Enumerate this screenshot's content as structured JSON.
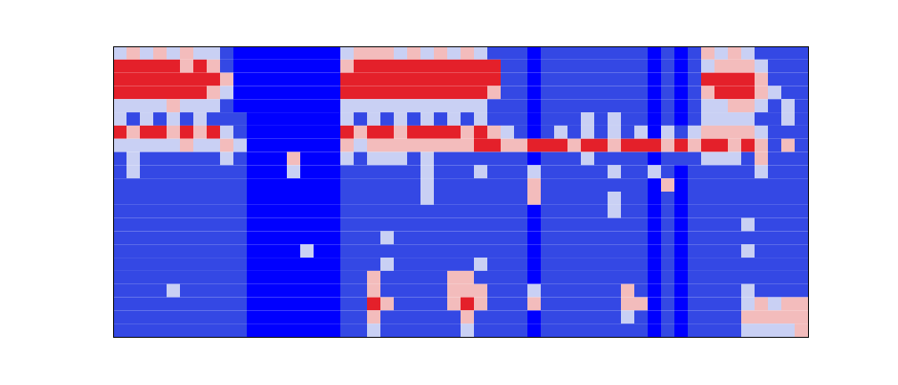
{
  "chart_data": {
    "type": "heatmap",
    "xlim": [
      0,
      52
    ],
    "ylim": [
      0,
      22
    ],
    "zlim": [
      0,
      4
    ],
    "tick_labels": false,
    "cells": [
      [
        2,
        3,
        2,
        3,
        2,
        3,
        2,
        2,
        1,
        0,
        0,
        0,
        0,
        0,
        0,
        0,
        0,
        2,
        3,
        3,
        3,
        2,
        3,
        2,
        3,
        2,
        3,
        2,
        1,
        1,
        1,
        0,
        1,
        1,
        1,
        1,
        1,
        1,
        1,
        1,
        0,
        1,
        0,
        1,
        3,
        2,
        3,
        2,
        1,
        1,
        1,
        1
      ],
      [
        4,
        4,
        4,
        4,
        4,
        3,
        4,
        3,
        1,
        0,
        0,
        0,
        0,
        0,
        0,
        0,
        0,
        3,
        4,
        4,
        4,
        4,
        4,
        4,
        4,
        4,
        4,
        4,
        4,
        1,
        1,
        0,
        1,
        1,
        1,
        1,
        1,
        1,
        1,
        1,
        0,
        1,
        0,
        1,
        2,
        3,
        3,
        3,
        2,
        1,
        1,
        1
      ],
      [
        4,
        4,
        4,
        4,
        4,
        4,
        4,
        4,
        3,
        0,
        0,
        0,
        0,
        0,
        0,
        0,
        0,
        4,
        4,
        4,
        4,
        4,
        4,
        4,
        4,
        4,
        4,
        4,
        4,
        1,
        1,
        0,
        1,
        1,
        1,
        1,
        1,
        1,
        1,
        1,
        0,
        1,
        0,
        1,
        4,
        4,
        4,
        4,
        3,
        1,
        1,
        1
      ],
      [
        4,
        4,
        4,
        4,
        4,
        4,
        4,
        3,
        2,
        0,
        0,
        0,
        0,
        0,
        0,
        0,
        0,
        4,
        4,
        4,
        4,
        4,
        4,
        4,
        4,
        4,
        4,
        4,
        3,
        1,
        1,
        0,
        1,
        1,
        1,
        1,
        1,
        1,
        1,
        1,
        0,
        1,
        0,
        1,
        3,
        4,
        4,
        4,
        3,
        2,
        1,
        1
      ],
      [
        2,
        2,
        2,
        2,
        3,
        2,
        2,
        2,
        1,
        0,
        0,
        0,
        0,
        0,
        0,
        0,
        0,
        2,
        2,
        2,
        2,
        2,
        2,
        2,
        2,
        2,
        2,
        2,
        1,
        1,
        1,
        0,
        1,
        1,
        1,
        1,
        1,
        1,
        1,
        1,
        0,
        1,
        0,
        1,
        2,
        2,
        3,
        3,
        2,
        1,
        2,
        1
      ],
      [
        2,
        1,
        2,
        1,
        2,
        1,
        2,
        1,
        1,
        1,
        0,
        0,
        0,
        0,
        0,
        0,
        0,
        2,
        1,
        2,
        1,
        2,
        1,
        2,
        1,
        2,
        1,
        2,
        1,
        1,
        1,
        0,
        1,
        1,
        1,
        2,
        1,
        2,
        1,
        1,
        0,
        1,
        0,
        1,
        2,
        2,
        2,
        2,
        1,
        1,
        2,
        1
      ],
      [
        4,
        3,
        4,
        4,
        3,
        4,
        3,
        4,
        2,
        1,
        0,
        0,
        0,
        0,
        0,
        0,
        0,
        4,
        3,
        4,
        4,
        3,
        4,
        4,
        4,
        4,
        3,
        4,
        3,
        2,
        1,
        0,
        1,
        2,
        1,
        2,
        1,
        2,
        1,
        2,
        0,
        2,
        1,
        2,
        3,
        3,
        3,
        3,
        2,
        1,
        1,
        1
      ],
      [
        2,
        2,
        2,
        2,
        2,
        3,
        2,
        2,
        3,
        2,
        0,
        0,
        0,
        0,
        0,
        0,
        0,
        3,
        2,
        3,
        3,
        3,
        3,
        3,
        3,
        3,
        3,
        4,
        4,
        3,
        3,
        4,
        4,
        4,
        3,
        4,
        4,
        3,
        4,
        4,
        4,
        3,
        4,
        3,
        4,
        4,
        3,
        4,
        3,
        1,
        3,
        1
      ],
      [
        1,
        2,
        1,
        1,
        1,
        1,
        1,
        1,
        2,
        1,
        0,
        0,
        0,
        3,
        0,
        0,
        0,
        2,
        1,
        2,
        2,
        2,
        1,
        2,
        1,
        1,
        1,
        1,
        1,
        1,
        1,
        0,
        1,
        1,
        1,
        2,
        1,
        1,
        1,
        1,
        0,
        1,
        1,
        1,
        2,
        2,
        2,
        1,
        3,
        1,
        1,
        1
      ],
      [
        1,
        2,
        1,
        1,
        1,
        1,
        1,
        1,
        1,
        1,
        0,
        0,
        0,
        2,
        0,
        0,
        0,
        1,
        1,
        1,
        1,
        1,
        1,
        2,
        1,
        1,
        1,
        2,
        1,
        1,
        1,
        2,
        1,
        1,
        1,
        1,
        1,
        2,
        1,
        1,
        2,
        1,
        0,
        1,
        1,
        1,
        1,
        1,
        2,
        1,
        1,
        1
      ],
      [
        1,
        1,
        1,
        1,
        1,
        1,
        1,
        1,
        1,
        1,
        0,
        0,
        0,
        0,
        0,
        0,
        0,
        1,
        1,
        1,
        1,
        1,
        1,
        2,
        1,
        1,
        1,
        1,
        1,
        1,
        1,
        3,
        1,
        1,
        1,
        1,
        1,
        1,
        1,
        1,
        0,
        3,
        0,
        1,
        1,
        1,
        1,
        1,
        1,
        1,
        1,
        1
      ],
      [
        1,
        1,
        1,
        1,
        1,
        1,
        1,
        1,
        1,
        1,
        0,
        0,
        0,
        0,
        0,
        0,
        0,
        1,
        1,
        1,
        1,
        1,
        1,
        2,
        1,
        1,
        1,
        1,
        1,
        1,
        1,
        3,
        1,
        1,
        1,
        1,
        1,
        2,
        1,
        1,
        0,
        1,
        0,
        1,
        1,
        1,
        1,
        1,
        1,
        1,
        1,
        1
      ],
      [
        1,
        1,
        1,
        1,
        1,
        1,
        1,
        1,
        1,
        1,
        0,
        0,
        0,
        0,
        0,
        0,
        0,
        1,
        1,
        1,
        1,
        1,
        1,
        1,
        1,
        1,
        1,
        1,
        1,
        1,
        1,
        0,
        1,
        1,
        1,
        1,
        1,
        2,
        1,
        1,
        0,
        1,
        0,
        1,
        1,
        1,
        1,
        1,
        1,
        1,
        1,
        1
      ],
      [
        1,
        1,
        1,
        1,
        1,
        1,
        1,
        1,
        1,
        1,
        0,
        0,
        0,
        0,
        0,
        0,
        0,
        1,
        1,
        1,
        1,
        1,
        1,
        1,
        1,
        1,
        1,
        1,
        1,
        1,
        1,
        0,
        1,
        1,
        1,
        1,
        1,
        1,
        1,
        1,
        0,
        1,
        0,
        1,
        1,
        1,
        1,
        2,
        1,
        1,
        1,
        1
      ],
      [
        1,
        1,
        1,
        1,
        1,
        1,
        1,
        1,
        1,
        1,
        0,
        0,
        0,
        0,
        0,
        0,
        0,
        1,
        1,
        1,
        2,
        1,
        1,
        1,
        1,
        1,
        1,
        1,
        1,
        1,
        1,
        0,
        1,
        1,
        1,
        1,
        1,
        1,
        1,
        1,
        0,
        1,
        0,
        1,
        1,
        1,
        1,
        1,
        1,
        1,
        1,
        1
      ],
      [
        1,
        1,
        1,
        1,
        1,
        1,
        1,
        1,
        1,
        1,
        0,
        0,
        0,
        0,
        2,
        0,
        0,
        1,
        1,
        1,
        1,
        1,
        1,
        1,
        1,
        1,
        1,
        1,
        1,
        1,
        1,
        0,
        1,
        1,
        1,
        1,
        1,
        1,
        1,
        1,
        0,
        1,
        0,
        1,
        1,
        1,
        1,
        2,
        1,
        1,
        1,
        1
      ],
      [
        1,
        1,
        1,
        1,
        1,
        1,
        1,
        1,
        1,
        1,
        0,
        0,
        0,
        0,
        0,
        0,
        0,
        1,
        1,
        1,
        2,
        1,
        1,
        1,
        1,
        1,
        1,
        2,
        1,
        1,
        1,
        0,
        1,
        1,
        1,
        1,
        1,
        1,
        1,
        1,
        0,
        1,
        0,
        1,
        1,
        1,
        1,
        1,
        1,
        1,
        1,
        1
      ],
      [
        1,
        1,
        1,
        1,
        1,
        1,
        1,
        1,
        1,
        1,
        0,
        0,
        0,
        0,
        0,
        0,
        0,
        1,
        1,
        3,
        1,
        1,
        1,
        1,
        1,
        3,
        3,
        1,
        1,
        1,
        1,
        0,
        1,
        1,
        1,
        1,
        1,
        1,
        1,
        1,
        0,
        1,
        0,
        1,
        1,
        1,
        1,
        1,
        1,
        1,
        1,
        1
      ],
      [
        1,
        1,
        1,
        1,
        2,
        1,
        1,
        1,
        1,
        1,
        0,
        0,
        0,
        0,
        0,
        0,
        0,
        1,
        1,
        3,
        1,
        1,
        1,
        1,
        1,
        3,
        3,
        3,
        1,
        1,
        1,
        2,
        1,
        1,
        1,
        1,
        1,
        1,
        3,
        1,
        0,
        1,
        0,
        1,
        1,
        1,
        1,
        2,
        1,
        1,
        1,
        1
      ],
      [
        1,
        1,
        1,
        1,
        1,
        1,
        1,
        1,
        1,
        1,
        0,
        0,
        0,
        0,
        0,
        0,
        0,
        1,
        1,
        4,
        3,
        1,
        1,
        1,
        1,
        3,
        4,
        3,
        1,
        1,
        1,
        3,
        1,
        1,
        1,
        1,
        1,
        1,
        3,
        3,
        0,
        1,
        0,
        1,
        1,
        1,
        1,
        2,
        3,
        2,
        3,
        3
      ],
      [
        1,
        1,
        1,
        1,
        1,
        1,
        1,
        1,
        1,
        1,
        0,
        0,
        0,
        0,
        0,
        0,
        0,
        1,
        1,
        3,
        1,
        1,
        1,
        1,
        1,
        1,
        3,
        1,
        1,
        1,
        1,
        0,
        1,
        1,
        1,
        1,
        1,
        1,
        2,
        1,
        0,
        1,
        0,
        1,
        1,
        1,
        1,
        3,
        3,
        3,
        3,
        3
      ],
      [
        1,
        1,
        1,
        1,
        1,
        1,
        1,
        1,
        1,
        1,
        0,
        0,
        0,
        0,
        0,
        0,
        0,
        1,
        1,
        2,
        1,
        1,
        1,
        1,
        1,
        1,
        2,
        1,
        1,
        1,
        1,
        0,
        1,
        1,
        1,
        1,
        1,
        1,
        1,
        1,
        0,
        1,
        0,
        1,
        1,
        1,
        1,
        2,
        2,
        2,
        2,
        3
      ]
    ]
  }
}
